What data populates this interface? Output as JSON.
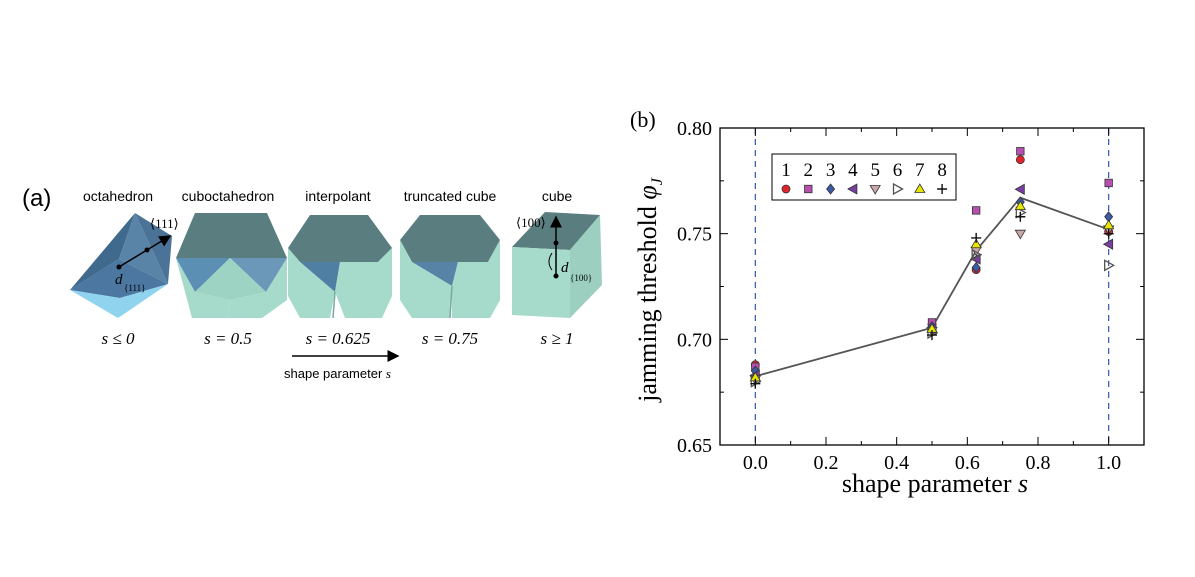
{
  "panel_a": {
    "label": "(a)",
    "shapes": [
      {
        "name": "octahedron",
        "s_label": "s ≤ 0"
      },
      {
        "name": "cuboctahedron",
        "s_label": "s = 0.5"
      },
      {
        "name": "interpolant",
        "s_label": "s = 0.625"
      },
      {
        "name": "truncated cube",
        "s_label": "s = 0.75"
      },
      {
        "name": "cube",
        "s_label": "s ≥ 1"
      }
    ],
    "annotations": {
      "dir_111": "⟨111⟩",
      "d_111": "d",
      "d_111_sub": "{111}",
      "dir_100": "⟨100⟩",
      "d_100": "d",
      "d_100_sub": "{100}"
    },
    "arrow_label": "shape parameter",
    "arrow_symbol": "s",
    "colors": {
      "dark_face": "#4b7396",
      "top_face": "#5a7d7f",
      "light_face": "#a6dacb",
      "mid_face": "#5c91b5",
      "bottom_face": "#8fd3ee"
    }
  },
  "chart_data": {
    "type": "scatter",
    "panel_label": "(b)",
    "xlabel": "shape parameter s",
    "ylabel": "jamming threshold φ_J",
    "xlabel_text": "shape parameter ",
    "xlabel_symbol": "s",
    "ylabel_text": "jamming threshold ",
    "ylabel_symbol": "φ",
    "ylabel_sub": "J",
    "xlim": [
      -0.1,
      1.1
    ],
    "ylim": [
      0.65,
      0.8
    ],
    "xticks": [
      "0.0",
      "0.2",
      "0.4",
      "0.6",
      "0.8",
      "1.0"
    ],
    "yticks": [
      "0.65",
      "0.70",
      "0.75",
      "0.80"
    ],
    "dashed_vlines": [
      0.0,
      1.0
    ],
    "legend_position": "top-left",
    "series": [
      {
        "name": "1",
        "marker": "circle",
        "color": "#e0242c",
        "x": [
          0.0,
          0.5,
          0.625,
          0.75,
          1.0
        ],
        "y": [
          0.688,
          0.707,
          0.733,
          0.785,
          0.751
        ]
      },
      {
        "name": "2",
        "marker": "square",
        "color": "#b84fb0",
        "x": [
          0.0,
          0.5,
          0.625,
          0.75,
          1.0
        ],
        "y": [
          0.687,
          0.708,
          0.761,
          0.789,
          0.774
        ]
      },
      {
        "name": "3",
        "marker": "diamond",
        "color": "#3d5aa5",
        "x": [
          0.0,
          0.5,
          0.625,
          0.75,
          1.0
        ],
        "y": [
          0.685,
          0.706,
          0.734,
          0.765,
          0.758
        ]
      },
      {
        "name": "4",
        "marker": "triangle-left",
        "color": "#7a3ea0",
        "x": [
          0.0,
          0.5,
          0.625,
          0.75,
          1.0
        ],
        "y": [
          0.683,
          0.705,
          0.738,
          0.771,
          0.745
        ]
      },
      {
        "name": "5",
        "marker": "triangle-down",
        "color": "#c8a8a8",
        "x": [
          0.0,
          0.5,
          0.625,
          0.75,
          1.0
        ],
        "y": [
          0.681,
          0.704,
          0.742,
          0.75,
          0.752
        ]
      },
      {
        "name": "6",
        "marker": "triangle-right-open",
        "color": "#555555",
        "x": [
          0.0,
          0.5,
          0.625,
          0.75,
          1.0
        ],
        "y": [
          0.68,
          0.703,
          0.74,
          0.76,
          0.735
        ]
      },
      {
        "name": "7",
        "marker": "triangle-up",
        "color": "#e6e600",
        "x": [
          0.0,
          0.5,
          0.625,
          0.75,
          1.0
        ],
        "y": [
          0.682,
          0.705,
          0.745,
          0.763,
          0.754
        ]
      },
      {
        "name": "8",
        "marker": "plus",
        "color": "#111111",
        "x": [
          0.0,
          0.5,
          0.625,
          0.75,
          1.0
        ],
        "y": [
          0.679,
          0.702,
          0.748,
          0.758,
          0.75
        ]
      }
    ],
    "mean_line": {
      "x": [
        0.0,
        0.5,
        0.625,
        0.75,
        1.0
      ],
      "y": [
        0.6825,
        0.7055,
        0.742,
        0.767,
        0.752
      ],
      "color": "#555555"
    }
  }
}
